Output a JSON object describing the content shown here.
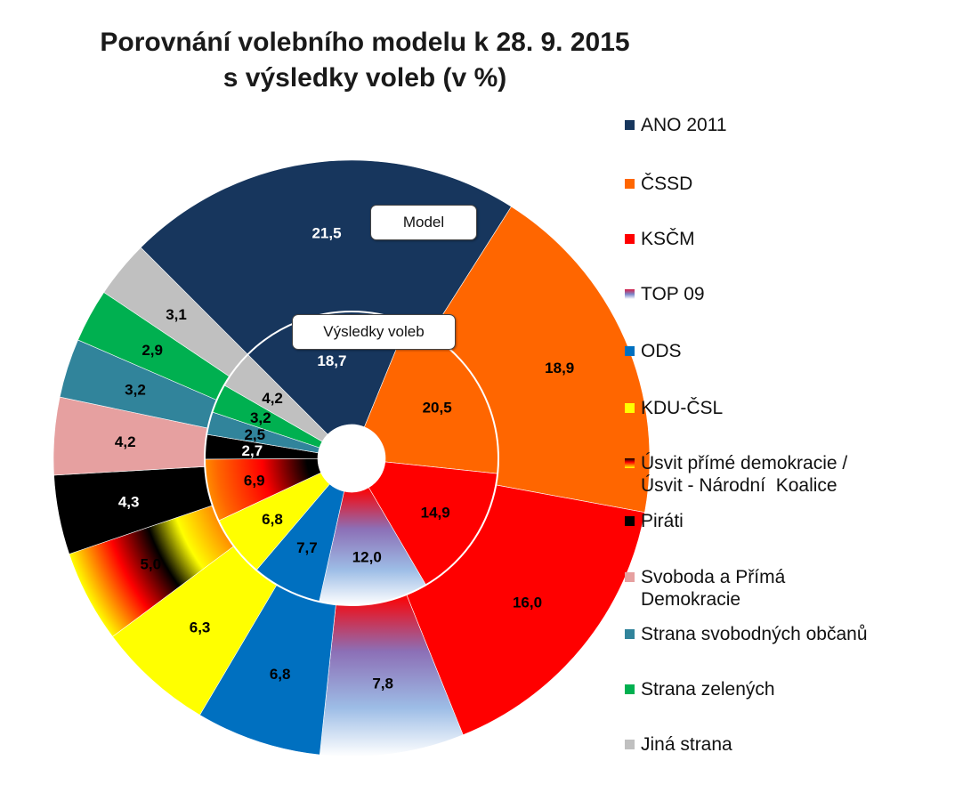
{
  "title_line1": "Porovnání volebního modelu k 28. 9. 2015",
  "title_line2": "s výsledky voleb (v %)",
  "callouts": {
    "outer": "Model",
    "inner": "Výsledky voleb"
  },
  "chart_data": {
    "type": "pie",
    "subtype": "nested-donut",
    "categories": [
      "ANO 2011",
      "ČSSD",
      "KSČM",
      "TOP 09",
      "ODS",
      "KDU-ČSL",
      "Úsvit přímé demokracie / Úsvit - Národní  Koalice",
      "Piráti",
      "Svoboda a Přímá Demokracie",
      "Strana svobodných občanů",
      "Strana zelených",
      "Jiná strana"
    ],
    "series": [
      {
        "name": "Model",
        "values": [
          21.5,
          18.9,
          16.0,
          7.8,
          6.8,
          6.3,
          5.0,
          4.3,
          4.2,
          3.2,
          2.9,
          3.1
        ]
      },
      {
        "name": "Výsledky voleb",
        "values": [
          18.7,
          20.5,
          14.9,
          12.0,
          7.7,
          6.8,
          6.9,
          2.7,
          null,
          2.5,
          3.2,
          4.2
        ]
      }
    ],
    "labels": {
      "Model": [
        "21,5",
        "18,9",
        "16,0",
        "7,8",
        "6,8",
        "6,3",
        "5,0",
        "4,3",
        "4,2",
        "3,2",
        "2,9",
        "3,1"
      ],
      "Výsledky voleb": [
        "18,7",
        "20,5",
        "14,9",
        "12,0",
        "7,7",
        "6,8",
        "6,9",
        "2,7",
        "",
        "2,5",
        "3,2",
        "4,2"
      ]
    },
    "colors": [
      "#17365d",
      "#ff6600",
      "#ff0000",
      "#8fb4e3",
      "#0070c0",
      "#ffff00",
      "#ff0000",
      "#000000",
      "#e6a0a0",
      "#31849b",
      "#00b050",
      "#c0c0c0"
    ],
    "gradients": {
      "TOP 09": [
        "#ff0000",
        "#7a86c9",
        "#ffffff"
      ],
      "Úsvit přímé demokracie / Úsvit - Národní  Koalice": [
        "#000000",
        "#ff0000",
        "#ffff00"
      ]
    },
    "label_colors": {
      "Model": [
        "#ffffff",
        "#000000",
        "#000000",
        "#000000",
        "#000000",
        "#000000",
        "#000000",
        "#ffffff",
        "#000000",
        "#000000",
        "#000000",
        "#000000"
      ],
      "Výsledky voleb": [
        "#ffffff",
        "#000000",
        "#000000",
        "#000000",
        "#000000",
        "#000000",
        "#000000",
        "#ffffff",
        "#000000",
        "#000000",
        "#000000",
        "#000000"
      ]
    },
    "legend": {
      "position": "right",
      "items": [
        "ANO 2011",
        "ČSSD",
        "KSČM",
        "TOP 09",
        "ODS",
        "KDU-ČSL",
        "Úsvit přímé demokracie / Úsvit - Národní  Koalice",
        "Piráti",
        "Svoboda a Přímá Demokracie",
        "Strana svobodných občanů",
        "Strana zelených",
        "Jiná strana"
      ]
    }
  }
}
